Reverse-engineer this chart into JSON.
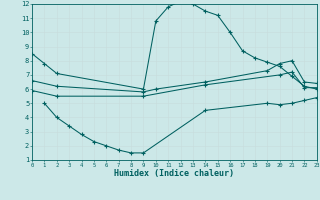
{
  "xlabel": "Humidex (Indice chaleur)",
  "bg_color": "#cce8e8",
  "grid_color": "#b0d8d8",
  "line_color": "#006060",
  "xlim": [
    0,
    23
  ],
  "ylim": [
    1,
    12
  ],
  "xticks": [
    0,
    1,
    2,
    3,
    4,
    5,
    6,
    7,
    8,
    9,
    10,
    11,
    12,
    13,
    14,
    15,
    16,
    17,
    18,
    19,
    20,
    21,
    22,
    23
  ],
  "yticks": [
    1,
    2,
    3,
    4,
    5,
    6,
    7,
    8,
    9,
    10,
    11,
    12
  ],
  "line1_x": [
    0,
    1,
    2,
    9,
    10,
    11,
    12,
    13,
    14,
    15,
    16,
    17,
    18,
    19,
    20,
    21,
    22,
    23
  ],
  "line1_y": [
    8.5,
    7.8,
    7.1,
    6.0,
    10.8,
    11.8,
    12.2,
    12.0,
    11.5,
    11.2,
    10.0,
    8.7,
    8.2,
    7.9,
    7.6,
    6.9,
    6.2,
    6.0
  ],
  "line2_x": [
    0,
    2,
    9,
    10,
    14,
    19,
    20,
    21,
    22,
    23
  ],
  "line2_y": [
    6.6,
    6.2,
    5.8,
    6.0,
    6.5,
    7.3,
    7.8,
    8.0,
    6.5,
    6.4
  ],
  "line3_x": [
    0,
    2,
    9,
    14,
    20,
    21,
    22,
    23
  ],
  "line3_y": [
    5.9,
    5.5,
    5.5,
    6.3,
    7.0,
    7.2,
    6.1,
    6.1
  ],
  "line4_x": [
    1,
    2,
    3,
    4,
    5,
    6,
    7,
    8,
    9,
    14,
    19,
    20,
    21,
    22,
    23
  ],
  "line4_y": [
    5.0,
    4.0,
    3.4,
    2.8,
    2.3,
    2.0,
    1.7,
    1.5,
    1.5,
    4.5,
    5.0,
    4.9,
    5.0,
    5.2,
    5.4
  ]
}
